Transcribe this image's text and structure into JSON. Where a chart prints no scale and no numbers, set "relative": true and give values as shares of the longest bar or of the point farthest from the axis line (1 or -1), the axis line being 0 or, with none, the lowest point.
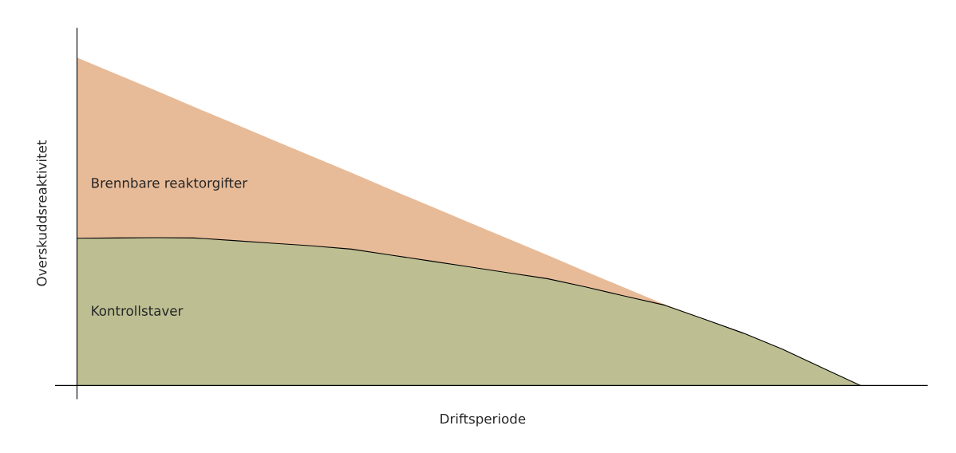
{
  "chart_data": {
    "type": "area",
    "stacked": true,
    "relative": true,
    "xlabel": "Driftsperiode",
    "ylabel": "Overskuddsreaktivitet",
    "legend": false,
    "categories": [
      null,
      null,
      null,
      null,
      null,
      null,
      null,
      null,
      null,
      null,
      null,
      null,
      null,
      null,
      null,
      null,
      null,
      null,
      null,
      null,
      null
    ],
    "series": [
      {
        "name": "Kontrollstaver",
        "color": "#bdbf93",
        "values": [
          0.449,
          0.45,
          0.451,
          0.45,
          0.442,
          0.434,
          0.426,
          0.416,
          0.398,
          0.38,
          0.362,
          0.344,
          0.326,
          0.3,
          0.272,
          0.245,
          0.203,
          0.16,
          0.111,
          0.055,
          0
        ]
      },
      {
        "name": "Brennbare reaktorgifter",
        "color": "#e8bb98",
        "values": [
          0.551,
          0.5,
          0.449,
          0.399,
          0.357,
          0.315,
          0.273,
          0.233,
          0.2,
          0.168,
          0.136,
          0.104,
          0.072,
          0.047,
          0.025,
          0.002,
          0,
          0,
          0,
          0,
          0
        ]
      }
    ]
  }
}
